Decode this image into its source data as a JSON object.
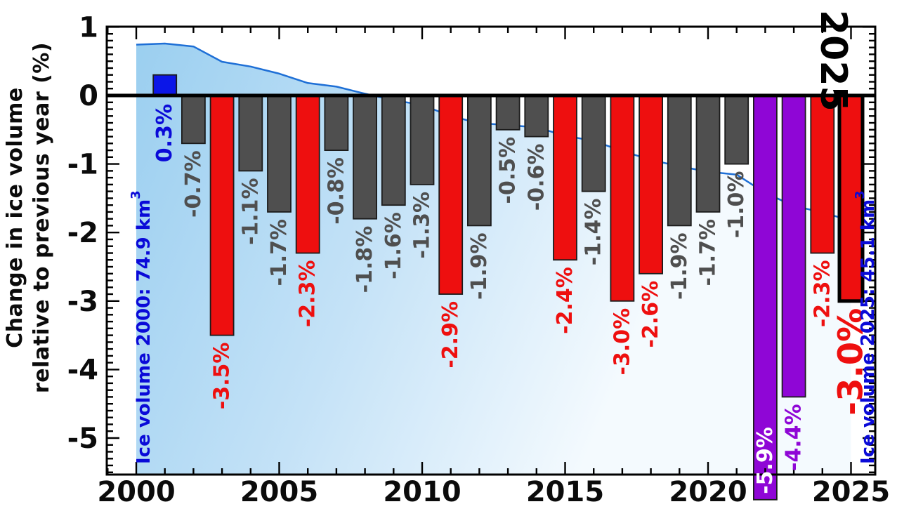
{
  "chart_data": {
    "type": "bar",
    "ylabel_line1": "Change in ice volume",
    "ylabel_line2": "relative to previous year (%)",
    "yticks": [
      1,
      0,
      -1,
      -2,
      -3,
      -4,
      -5
    ],
    "xticks": [
      2000,
      2005,
      2010,
      2015,
      2020,
      2025
    ],
    "ylim": [
      1.0,
      -5.53
    ],
    "xlim": [
      1999,
      2025.85
    ],
    "y_minor_step": 0.1,
    "x_minor_step": 1,
    "value_suffix": "%",
    "legend": "none",
    "grid": "off",
    "bars": [
      {
        "year": 2001,
        "value": 0.3,
        "color": "#0b16e8",
        "label_color": "#0a0ad8"
      },
      {
        "year": 2002,
        "value": -0.7,
        "color": "#4f4f4f"
      },
      {
        "year": 2003,
        "value": -3.5,
        "color": "#ee0f0f"
      },
      {
        "year": 2004,
        "value": -1.1,
        "color": "#4f4f4f"
      },
      {
        "year": 2005,
        "value": -1.7,
        "color": "#4f4f4f"
      },
      {
        "year": 2006,
        "value": -2.3,
        "color": "#ee0f0f"
      },
      {
        "year": 2007,
        "value": -0.8,
        "color": "#4f4f4f"
      },
      {
        "year": 2008,
        "value": -1.8,
        "color": "#4f4f4f"
      },
      {
        "year": 2009,
        "value": -1.6,
        "color": "#4f4f4f"
      },
      {
        "year": 2010,
        "value": -1.3,
        "color": "#4f4f4f"
      },
      {
        "year": 2011,
        "value": -2.9,
        "color": "#ee0f0f"
      },
      {
        "year": 2012,
        "value": -1.9,
        "color": "#4f4f4f"
      },
      {
        "year": 2013,
        "value": -0.5,
        "color": "#4f4f4f"
      },
      {
        "year": 2014,
        "value": -0.6,
        "color": "#4f4f4f"
      },
      {
        "year": 2015,
        "value": -2.4,
        "color": "#ee0f0f"
      },
      {
        "year": 2016,
        "value": -1.4,
        "color": "#4f4f4f"
      },
      {
        "year": 2017,
        "value": -3.0,
        "color": "#ee0f0f"
      },
      {
        "year": 2018,
        "value": -2.6,
        "color": "#ee0f0f"
      },
      {
        "year": 2019,
        "value": -1.9,
        "color": "#4f4f4f"
      },
      {
        "year": 2020,
        "value": -1.7,
        "color": "#4f4f4f"
      },
      {
        "year": 2021,
        "value": -1.0,
        "color": "#4f4f4f"
      },
      {
        "year": 2022,
        "value": -5.9,
        "color": "#8f06d6",
        "label_color": "#ffffff",
        "label_pos": "inside"
      },
      {
        "year": 2023,
        "value": -4.4,
        "color": "#8f06d6"
      },
      {
        "year": 2024,
        "value": -2.3,
        "color": "#ee0f0f"
      },
      {
        "year": 2025,
        "value": -3.0,
        "color": "#ee0f0f",
        "label_size": 48,
        "outline": "#000000",
        "outline_width": 5
      }
    ],
    "ice_volume_area": {
      "years": [
        2000,
        2001,
        2002,
        2003,
        2004,
        2005,
        2006,
        2007,
        2008,
        2009,
        2010,
        2011,
        2012,
        2013,
        2014,
        2015,
        2016,
        2017,
        2018,
        2019,
        2020,
        2021,
        2022,
        2023,
        2024,
        2025
      ],
      "volume_km3": [
        74.9,
        75.1,
        74.6,
        72.0,
        71.2,
        70.0,
        68.4,
        67.8,
        66.6,
        65.5,
        64.7,
        62.8,
        61.6,
        61.3,
        60.9,
        59.5,
        58.6,
        56.9,
        55.4,
        54.3,
        53.4,
        52.9,
        49.8,
        47.6,
        46.5,
        45.1
      ],
      "axis_map": {
        "offset_km3": 66.3,
        "km3_per_unit": 11.6
      }
    },
    "annotations": {
      "left_label": "Ice volume 2000: 74.9 km",
      "left_sup": "3",
      "right_label": "Ice volume 2025: 45.1 km",
      "right_sup": "3",
      "corner_year": "2025"
    },
    "colors": {
      "bar_gray": "#4f4f4f",
      "bar_red": "#ee0f0f",
      "bar_blue": "#0b16e8",
      "bar_purple": "#8f06d6",
      "area_start": "#9bcff0",
      "area_mid": "#c4e2f7",
      "area_end": "#f4fafe",
      "curve": "#1e6fd6",
      "annotation_blue": "#0a0ad8",
      "axis": "#000000",
      "tick_label": "#0b0b0b"
    }
  }
}
